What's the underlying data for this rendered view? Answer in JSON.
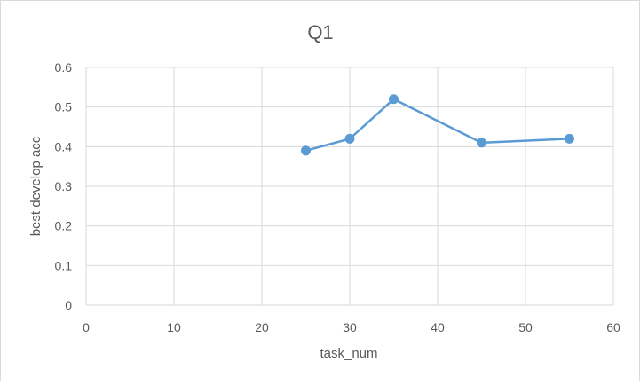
{
  "chart_data": {
    "type": "scatter",
    "title": "Q1",
    "xlabel": "task_num",
    "ylabel": "best develop acc",
    "xlim": [
      0,
      60
    ],
    "ylim": [
      0,
      0.6
    ],
    "x_ticks": [
      "0",
      "10",
      "20",
      "30",
      "40",
      "50",
      "60"
    ],
    "y_ticks": [
      "0",
      "0.1",
      "0.2",
      "0.3",
      "0.4",
      "0.5",
      "0.6"
    ],
    "grid": true,
    "legend": "none",
    "series": [
      {
        "x": [
          25,
          30,
          35,
          45,
          55
        ],
        "y": [
          0.39,
          0.42,
          0.52,
          0.41,
          0.42
        ],
        "color": "#5b9bd5",
        "style": "line-with-markers"
      }
    ]
  }
}
